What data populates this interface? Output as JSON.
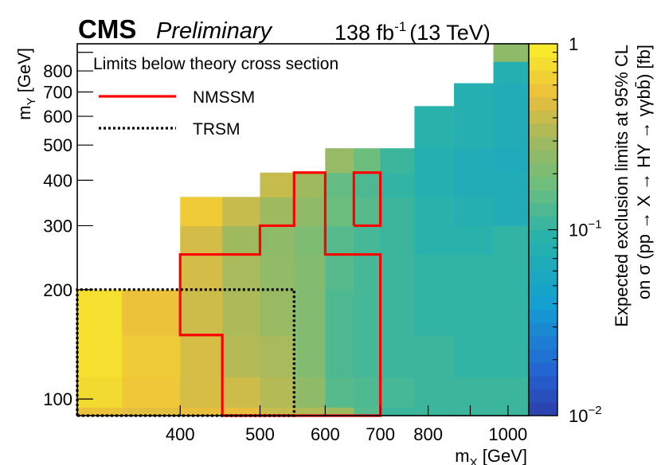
{
  "header": {
    "cms": "CMS",
    "preliminary": "Preliminary",
    "lumi_value": "138 fb",
    "lumi_exp": "-1",
    "lumi_energy": "(13 TeV)"
  },
  "legend": {
    "title": "Limits below theory cross section",
    "items": [
      {
        "label": "NMSSM",
        "style": "solid",
        "color": "#ff0000"
      },
      {
        "label": "TRSM",
        "style": "dotted",
        "color": "#000000"
      }
    ]
  },
  "chart_data": {
    "type": "heatmap",
    "title": "",
    "xlabel": "m_X [GeV]",
    "ylabel": "m_Y [GeV]",
    "zlabel_line1": "Expected exclusion limits at 95% CL",
    "zlabel_line2": "on σ (pp → X → HY → γγbb̄) [fb]",
    "x_scale": "log",
    "y_scale": "log",
    "z_scale": "log",
    "xlim": [
      300,
      1060
    ],
    "ylim": [
      90,
      950
    ],
    "zlim": [
      0.01,
      1
    ],
    "x_ticks": [
      {
        "value": 400,
        "label": "400"
      },
      {
        "value": 500,
        "label": "500"
      },
      {
        "value": 600,
        "label": "600"
      },
      {
        "value": 700,
        "label": "700"
      },
      {
        "value": 800,
        "label": "800"
      },
      {
        "value": 1000,
        "label": "1000"
      }
    ],
    "y_ticks": [
      {
        "value": 100,
        "label": "100"
      },
      {
        "value": 200,
        "label": "200"
      },
      {
        "value": 300,
        "label": "300"
      },
      {
        "value": 400,
        "label": "400"
      },
      {
        "value": 500,
        "label": "500"
      },
      {
        "value": 600,
        "label": "600"
      },
      {
        "value": 700,
        "label": "700"
      },
      {
        "value": 800,
        "label": "800"
      }
    ],
    "z_ticks": [
      {
        "value": 1,
        "label": "1",
        "base": "",
        "exp": ""
      },
      {
        "value": 0.1,
        "label": "",
        "base": "10",
        "exp": "−1"
      },
      {
        "value": 0.01,
        "label": "",
        "base": "10",
        "exp": "−2"
      }
    ],
    "x_edges": [
      300,
      340,
      400,
      450,
      500,
      550,
      600,
      650,
      700,
      770,
      860,
      960,
      1060
    ],
    "y_edges": [
      90,
      95,
      115,
      150,
      200,
      250,
      300,
      360,
      420,
      490,
      560,
      640,
      740,
      850,
      950
    ],
    "cells": [
      [
        0.55,
        0.5,
        0.52,
        0.52,
        0.4,
        0.34,
        0.3,
        0.14,
        0.11,
        0.11,
        0.11,
        0.11
      ],
      [
        0.75,
        0.6,
        0.45,
        0.42,
        0.35,
        0.25,
        0.14,
        0.13,
        0.12,
        0.11,
        0.11,
        0.11
      ],
      [
        0.8,
        0.62,
        0.45,
        0.35,
        0.32,
        0.22,
        0.13,
        0.12,
        0.11,
        0.11,
        0.1,
        0.1
      ],
      [
        0.8,
        0.55,
        0.42,
        0.33,
        0.28,
        0.22,
        0.13,
        0.12,
        0.11,
        0.1,
        0.1,
        0.1
      ],
      [
        null,
        null,
        0.44,
        0.32,
        0.26,
        0.22,
        0.14,
        0.12,
        0.11,
        0.1,
        0.1,
        0.1
      ],
      [
        null,
        null,
        0.44,
        0.3,
        0.25,
        0.21,
        0.14,
        0.12,
        0.11,
        0.09,
        0.09,
        0.1
      ],
      [
        null,
        null,
        0.62,
        0.4,
        0.3,
        0.25,
        0.17,
        0.14,
        0.11,
        0.09,
        0.08,
        0.07
      ],
      [
        null,
        null,
        null,
        null,
        0.4,
        0.3,
        0.16,
        0.13,
        0.1,
        0.08,
        0.07,
        0.07
      ],
      [
        null,
        null,
        null,
        null,
        null,
        null,
        0.27,
        0.17,
        0.11,
        0.08,
        0.07,
        0.065
      ],
      [
        null,
        null,
        null,
        null,
        null,
        null,
        null,
        null,
        null,
        0.09,
        0.08,
        0.07
      ],
      [
        null,
        null,
        null,
        null,
        null,
        null,
        null,
        null,
        null,
        0.09,
        0.08,
        0.07
      ],
      [
        null,
        null,
        null,
        null,
        null,
        null,
        null,
        null,
        null,
        null,
        0.08,
        0.07
      ],
      [
        null,
        null,
        null,
        null,
        null,
        null,
        null,
        null,
        null,
        null,
        null,
        0.08
      ],
      [
        null,
        null,
        null,
        null,
        null,
        null,
        null,
        null,
        null,
        null,
        null,
        0.25
      ]
    ],
    "contours": [
      {
        "label": "NMSSM",
        "points": [
          [
            450,
            90
          ],
          [
            700,
            90
          ],
          [
            700,
            250
          ],
          [
            600,
            250
          ],
          [
            600,
            250
          ],
          [
            600,
            420
          ],
          [
            550,
            420
          ],
          [
            550,
            300
          ],
          [
            500,
            300
          ],
          [
            500,
            250
          ],
          [
            400,
            250
          ],
          [
            400,
            150
          ],
          [
            450,
            150
          ],
          [
            450,
            90
          ]
        ]
      },
      {
        "label": "NMSSM",
        "points": [
          [
            650,
            300
          ],
          [
            700,
            300
          ],
          [
            700,
            420
          ],
          [
            650,
            420
          ],
          [
            650,
            300
          ]
        ]
      },
      {
        "label": "TRSM",
        "points": [
          [
            300,
            90
          ],
          [
            550,
            90
          ],
          [
            550,
            200
          ],
          [
            300,
            200
          ],
          [
            300,
            90
          ]
        ]
      }
    ]
  }
}
